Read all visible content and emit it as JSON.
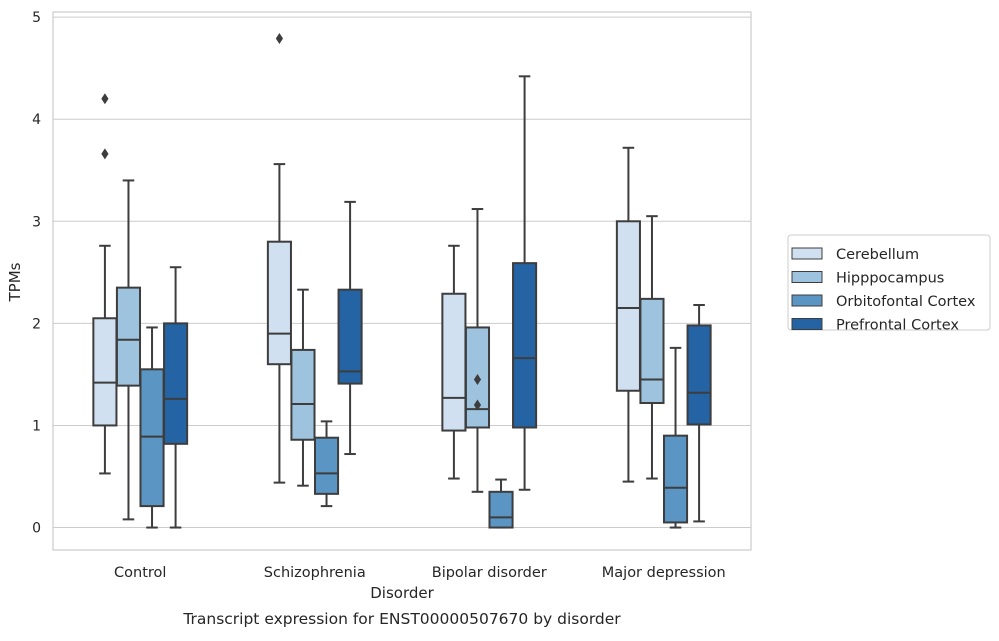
{
  "chart_data": {
    "type": "box",
    "title": "Transcript expression for ENST00000507670 by disorder",
    "xlabel": "Disorder",
    "ylabel": "TPMs",
    "ylim": [
      -0.22,
      5.05
    ],
    "yticks": [
      0,
      1,
      2,
      3,
      4,
      5
    ],
    "grid": true,
    "legend_position": "right",
    "categories": [
      "Control",
      "Schizophrenia",
      "Bipolar disorder",
      "Major depression"
    ],
    "series": [
      {
        "name": "Cerebellum",
        "color": "#d0e0f1",
        "boxes": [
          {
            "whisker_low": 0.53,
            "q1": 1.0,
            "median": 1.42,
            "q3": 2.05,
            "whisker_high": 2.76,
            "outliers": [
              3.66,
              4.2
            ]
          },
          {
            "whisker_low": 0.44,
            "q1": 1.6,
            "median": 1.9,
            "q3": 2.8,
            "whisker_high": 3.56,
            "outliers": [
              4.79
            ]
          },
          {
            "whisker_low": 0.48,
            "q1": 0.95,
            "median": 1.27,
            "q3": 2.29,
            "whisker_high": 2.76,
            "outliers": []
          },
          {
            "whisker_low": 0.45,
            "q1": 1.34,
            "median": 2.15,
            "q3": 3.0,
            "whisker_high": 3.72,
            "outliers": []
          }
        ]
      },
      {
        "name": "Hipppocampus",
        "color": "#9dc3de",
        "boxes": [
          {
            "whisker_low": 0.08,
            "q1": 1.39,
            "median": 1.84,
            "q3": 2.35,
            "whisker_high": 3.4,
            "outliers": []
          },
          {
            "whisker_low": 0.41,
            "q1": 0.86,
            "median": 1.21,
            "q3": 1.74,
            "whisker_high": 2.33,
            "outliers": []
          },
          {
            "whisker_low": 0.35,
            "q1": 0.98,
            "median": 1.16,
            "q3": 1.96,
            "whisker_high": 3.12,
            "outliers": [
              1.2,
              1.45
            ]
          },
          {
            "whisker_low": 0.48,
            "q1": 1.22,
            "median": 1.45,
            "q3": 2.24,
            "whisker_high": 3.05,
            "outliers": []
          }
        ]
      },
      {
        "name": "Orbitofontal Cortex",
        "color": "#5a95c4",
        "boxes": [
          {
            "whisker_low": 0.0,
            "q1": 0.21,
            "median": 0.89,
            "q3": 1.55,
            "whisker_high": 1.96,
            "outliers": []
          },
          {
            "whisker_low": 0.21,
            "q1": 0.33,
            "median": 0.53,
            "q3": 0.88,
            "whisker_high": 1.04,
            "outliers": []
          },
          {
            "whisker_low": 0.0,
            "q1": 0.0,
            "median": 0.1,
            "q3": 0.35,
            "whisker_high": 0.47,
            "outliers": []
          },
          {
            "whisker_low": 0.0,
            "q1": 0.05,
            "median": 0.39,
            "q3": 0.9,
            "whisker_high": 1.76,
            "outliers": []
          }
        ]
      },
      {
        "name": "Prefrontal Cortex",
        "color": "#2463a4",
        "boxes": [
          {
            "whisker_low": 0.0,
            "q1": 0.82,
            "median": 1.26,
            "q3": 2.0,
            "whisker_high": 2.55,
            "outliers": []
          },
          {
            "whisker_low": 0.72,
            "q1": 1.41,
            "median": 1.53,
            "q3": 2.33,
            "whisker_high": 3.19,
            "outliers": []
          },
          {
            "whisker_low": 0.37,
            "q1": 0.98,
            "median": 1.66,
            "q3": 2.59,
            "whisker_high": 4.42,
            "outliers": []
          },
          {
            "whisker_low": 0.06,
            "q1": 1.01,
            "median": 1.32,
            "q3": 1.98,
            "whisker_high": 2.18,
            "outliers": []
          }
        ]
      }
    ]
  }
}
